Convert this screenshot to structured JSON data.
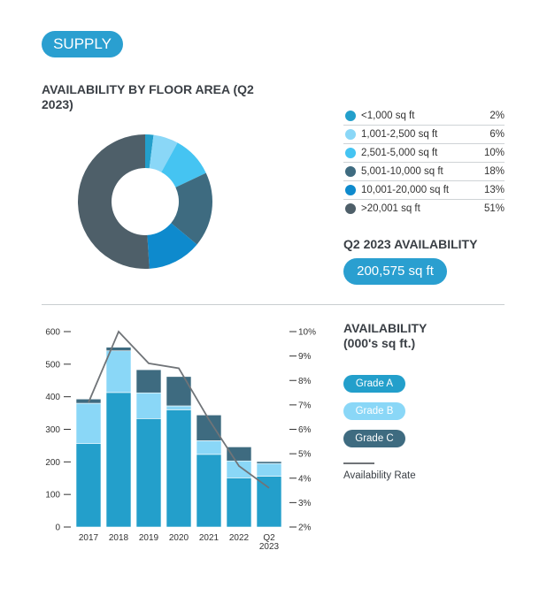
{
  "header": {
    "badge": "SUPPLY"
  },
  "donut": {
    "title": "AVAILABILITY BY FLOOR AREA (Q2 2023)"
  },
  "legend": [
    {
      "label": "<1,000 sq ft",
      "value": "2%",
      "pct": 2,
      "color": "#239fcb"
    },
    {
      "label": "1,001-2,500 sq ft",
      "value": "6%",
      "pct": 6,
      "color": "#8ad7f7"
    },
    {
      "label": "2,501-5,000 sq ft",
      "value": "10%",
      "pct": 10,
      "color": "#45c4f2"
    },
    {
      "label": "5,001-10,000 sq ft",
      "value": "18%",
      "pct": 18,
      "color": "#3e6b80"
    },
    {
      "label": "10,001-20,000 sq ft",
      "value": "13%",
      "pct": 13,
      "color": "#0e8acd"
    },
    {
      "label": ">20,001 sq ft",
      "value": "51%",
      "pct": 51,
      "color": "#4e5f69"
    }
  ],
  "q2": {
    "title": "Q2 2023 AVAILABILITY",
    "value": "200,575 sq ft"
  },
  "availability": {
    "title": "AVAILABILITY",
    "subtitle": "(000's sq ft.)",
    "rate_label": "Availability Rate"
  },
  "chart_data": {
    "type": "bar",
    "stacked": true,
    "categories": [
      "2017",
      "2018",
      "2019",
      "2020",
      "2021",
      "2022",
      "Q2 2023"
    ],
    "series": [
      {
        "name": "Grade A",
        "values": [
          256,
          413,
          333,
          360,
          223,
          151,
          156
        ],
        "color": "#239fcb"
      },
      {
        "name": "Grade B",
        "values": [
          124,
          128,
          79,
          12,
          42,
          52,
          39
        ],
        "color": "#8ad7f7"
      },
      {
        "name": "Grade C",
        "values": [
          13,
          11,
          71,
          90,
          79,
          43,
          6
        ],
        "color": "#3e6b80"
      }
    ],
    "line": {
      "name": "Availability Rate",
      "values": [
        7.1,
        10.0,
        8.7,
        8.5,
        6.4,
        4.5,
        3.6
      ],
      "color": "#707478",
      "axis": "right"
    },
    "ylim": [
      0,
      600
    ],
    "yticks": [
      0,
      100,
      200,
      300,
      400,
      500,
      600
    ],
    "y2lim": [
      2,
      10
    ],
    "y2ticks": [
      "2%",
      "3%",
      "4%",
      "5%",
      "6%",
      "7%",
      "8%",
      "9%",
      "10%"
    ],
    "grid": false,
    "legend": "right"
  }
}
